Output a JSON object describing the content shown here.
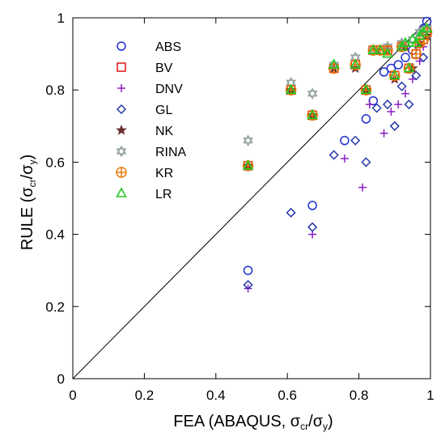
{
  "chart_data": {
    "type": "scatter",
    "xlabel": {
      "main": "FEA (ABAQUS, ",
      "sigma1": "σ",
      "sub1": "cr",
      "slash": "/",
      "sigma2": "σ",
      "sub2": "y",
      "close": ")"
    },
    "ylabel": {
      "main": "RULE (",
      "sigma1": "σ",
      "sub1": "cr",
      "slash": "/",
      "sigma2": "σ",
      "sub2": "y",
      "close": ")"
    },
    "xlim": [
      0,
      1
    ],
    "ylim": [
      0,
      1
    ],
    "xticks": [
      "0",
      "0.2",
      "0.4",
      "0.6",
      "0.8",
      "1"
    ],
    "yticks": [
      "0",
      "0.2",
      "0.4",
      "0.6",
      "0.8",
      "1"
    ],
    "xtick_values": [
      0,
      0.2,
      0.4,
      0.6,
      0.8,
      1
    ],
    "ytick_values": [
      0,
      0.2,
      0.4,
      0.6,
      0.8,
      1
    ],
    "reference_line": {
      "x": [
        0,
        1
      ],
      "y": [
        0,
        1
      ],
      "color": "#000000"
    },
    "grid": false,
    "legend_position": "top-left",
    "series": [
      {
        "name": "ABS",
        "marker": "circle",
        "color": "#1f2fd0",
        "x": [
          0.49,
          0.67,
          0.76,
          0.82,
          0.84,
          0.87,
          0.89,
          0.91,
          0.93,
          0.95,
          0.97,
          0.98,
          0.99
        ],
        "y": [
          0.3,
          0.48,
          0.66,
          0.72,
          0.77,
          0.85,
          0.86,
          0.87,
          0.89,
          0.91,
          0.94,
          0.97,
          0.99
        ]
      },
      {
        "name": "BV",
        "marker": "square",
        "color": "#e01010",
        "x": [
          0.49,
          0.61,
          0.67,
          0.73,
          0.79,
          0.82,
          0.84,
          0.86,
          0.88,
          0.9,
          0.92,
          0.94,
          0.96,
          0.97,
          0.98,
          0.99
        ],
        "y": [
          0.59,
          0.8,
          0.73,
          0.86,
          0.87,
          0.8,
          0.91,
          0.91,
          0.91,
          0.84,
          0.92,
          0.86,
          0.9,
          0.93,
          0.94,
          0.96
        ]
      },
      {
        "name": "DNV",
        "marker": "plus",
        "color": "#8a1fc4",
        "x": [
          0.49,
          0.67,
          0.76,
          0.81,
          0.83,
          0.87,
          0.89,
          0.91,
          0.93,
          0.95,
          0.97,
          0.98
        ],
        "y": [
          0.25,
          0.4,
          0.61,
          0.53,
          0.76,
          0.68,
          0.74,
          0.76,
          0.79,
          0.83,
          0.88,
          0.92
        ]
      },
      {
        "name": "GL",
        "marker": "diamond",
        "color": "#2538a8",
        "x": [
          0.49,
          0.61,
          0.67,
          0.73,
          0.79,
          0.82,
          0.85,
          0.88,
          0.9,
          0.92,
          0.94,
          0.96,
          0.98
        ],
        "y": [
          0.26,
          0.46,
          0.42,
          0.62,
          0.66,
          0.6,
          0.75,
          0.76,
          0.7,
          0.81,
          0.76,
          0.84,
          0.89
        ]
      },
      {
        "name": "NK",
        "marker": "star",
        "color": "#6b3030",
        "x": [
          0.49,
          0.61,
          0.67,
          0.73,
          0.79,
          0.82,
          0.85,
          0.88,
          0.9,
          0.93,
          0.95,
          0.97,
          0.99
        ],
        "y": [
          0.59,
          0.8,
          0.73,
          0.86,
          0.86,
          0.8,
          0.91,
          0.91,
          0.83,
          0.92,
          0.86,
          0.93,
          0.95
        ]
      },
      {
        "name": "RINA",
        "marker": "hexagram",
        "color": "#8c9c9c",
        "x": [
          0.49,
          0.61,
          0.67,
          0.73,
          0.79,
          0.84,
          0.88,
          0.92,
          0.95,
          0.97,
          0.99
        ],
        "y": [
          0.66,
          0.82,
          0.79,
          0.87,
          0.89,
          0.91,
          0.92,
          0.93,
          0.94,
          0.96,
          0.97
        ]
      },
      {
        "name": "KR",
        "marker": "circle-plus",
        "color": "#e8780a",
        "x": [
          0.49,
          0.61,
          0.67,
          0.73,
          0.79,
          0.82,
          0.84,
          0.86,
          0.88,
          0.9,
          0.92,
          0.94,
          0.96,
          0.97,
          0.98,
          0.99
        ],
        "y": [
          0.59,
          0.8,
          0.73,
          0.86,
          0.87,
          0.8,
          0.91,
          0.91,
          0.91,
          0.84,
          0.92,
          0.86,
          0.9,
          0.93,
          0.94,
          0.96
        ]
      },
      {
        "name": "LR",
        "marker": "triangle",
        "color": "#22c822",
        "x": [
          0.49,
          0.61,
          0.67,
          0.73,
          0.79,
          0.82,
          0.84,
          0.86,
          0.88,
          0.9,
          0.92,
          0.93,
          0.94,
          0.95,
          0.96,
          0.97,
          0.98,
          0.99
        ],
        "y": [
          0.59,
          0.8,
          0.73,
          0.87,
          0.87,
          0.8,
          0.91,
          0.91,
          0.9,
          0.84,
          0.92,
          0.93,
          0.86,
          0.94,
          0.93,
          0.95,
          0.96,
          0.97
        ]
      }
    ]
  }
}
